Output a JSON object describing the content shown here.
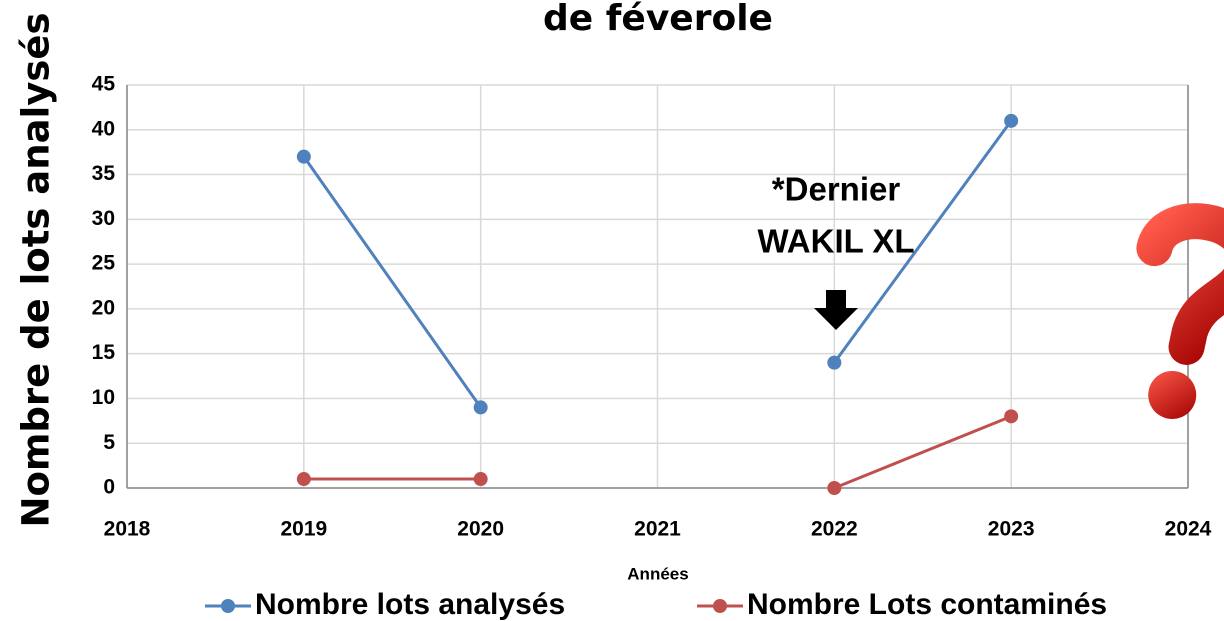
{
  "chart_data": {
    "type": "line",
    "title": "de féverole",
    "x_label": "Années",
    "y_label": "Nombre de lots analysés",
    "x": [
      2019,
      2020,
      2021,
      2022,
      2023
    ],
    "series": [
      {
        "name": "Nombre lots analysés",
        "color": "#4f81bd",
        "values": [
          37,
          9,
          null,
          14,
          41
        ]
      },
      {
        "name": "Nombre Lots contaminés",
        "color": "#c0504d",
        "values": [
          1,
          1,
          null,
          0,
          8
        ]
      }
    ],
    "annotation": [
      "*Dernier",
      "WAKIL XL"
    ],
    "xlim": [
      2018,
      2024
    ],
    "xticks": [
      2018,
      2019,
      2020,
      2021,
      2022,
      2023,
      2024
    ],
    "ylim": [
      0,
      45
    ],
    "yticks": [
      0,
      5,
      10,
      15,
      20,
      25,
      30,
      35,
      40,
      45
    ],
    "grid": true,
    "legend": "bottom"
  }
}
